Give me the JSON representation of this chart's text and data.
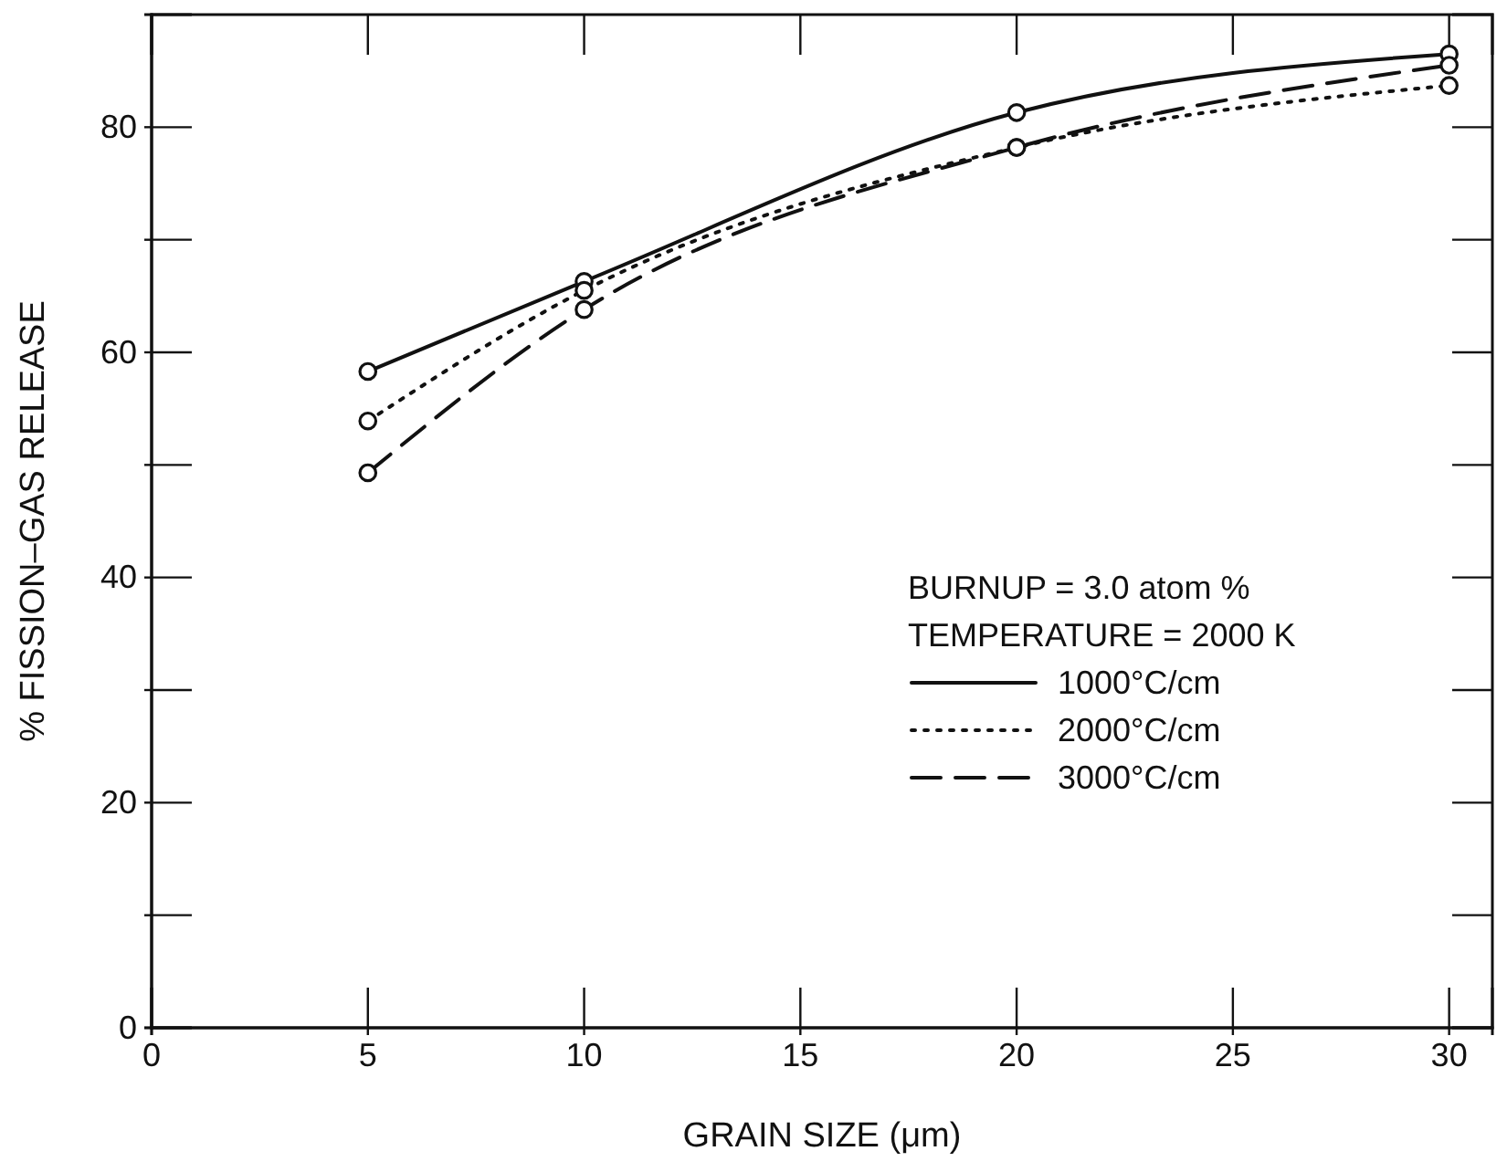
{
  "chart_data": {
    "type": "line",
    "xlabel": "GRAIN SIZE (μm)",
    "ylabel": "% FISSION–GAS RELEASE",
    "xlim": [
      0,
      31
    ],
    "xticks": [
      0,
      5,
      10,
      15,
      20,
      25,
      30
    ],
    "ylim": [
      0,
      90
    ],
    "yticks": [
      0,
      {
        "value": 10,
        "label": null
      },
      20,
      {
        "value": 30,
        "label": null
      },
      40,
      {
        "value": 50,
        "label": null
      },
      60,
      {
        "value": 70,
        "label": null
      },
      80
    ],
    "x": [
      5,
      10,
      20,
      30
    ],
    "series": [
      {
        "name": "1000°C/cm",
        "color": "#111111",
        "line_style": "solid",
        "values": [
          58.3,
          66.3,
          81.3,
          86.5
        ]
      },
      {
        "name": "2000°C/cm",
        "color": "#111111",
        "line_style": "dotted",
        "values": [
          53.9,
          65.5,
          78.2,
          83.7
        ]
      },
      {
        "name": "3000°C/cm",
        "color": "#111111",
        "line_style": "dashed",
        "values": [
          49.3,
          63.8,
          78.2,
          85.5
        ]
      }
    ],
    "marker": "circle",
    "legend": "bottom right",
    "grid": false,
    "annotations": [
      "BURNUP = 3.0 atom %",
      "TEMPERATURE = 2000 K"
    ]
  }
}
